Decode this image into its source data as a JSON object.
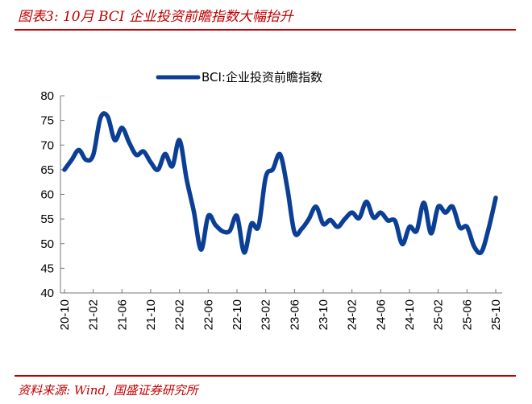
{
  "header": {
    "title": "图表3:  10月 BCI 企业投资前瞻指数大幅抬升"
  },
  "footer": {
    "source": "资料来源:  Wind, 国盛证券研究所"
  },
  "colors": {
    "line": "#0b3f95",
    "accent": "#c00000"
  },
  "chart_data": {
    "type": "line",
    "legend_position": "top",
    "grid": false,
    "ylim": [
      40,
      80
    ],
    "yticks": [
      40,
      45,
      50,
      55,
      60,
      65,
      70,
      75,
      80
    ],
    "xtick_labels": [
      "20-10",
      "21-02",
      "21-06",
      "21-10",
      "22-02",
      "22-06",
      "22-10",
      "23-02",
      "23-06",
      "23-10",
      "24-02",
      "24-06",
      "24-10",
      "25-02",
      "25-06",
      "25-10"
    ],
    "x": [
      "20-10",
      "20-11",
      "20-12",
      "21-01",
      "21-02",
      "21-03",
      "21-04",
      "21-05",
      "21-06",
      "21-07",
      "21-08",
      "21-09",
      "21-10",
      "21-11",
      "21-12",
      "22-01",
      "22-02",
      "22-03",
      "22-04",
      "22-05",
      "22-06",
      "22-07",
      "22-08",
      "22-09",
      "22-10",
      "22-11",
      "22-12",
      "23-01",
      "23-02",
      "23-03",
      "23-04",
      "23-05",
      "23-06",
      "23-07",
      "23-08",
      "23-09",
      "23-10",
      "23-11",
      "23-12",
      "24-01",
      "24-02",
      "24-03",
      "24-04",
      "24-05",
      "24-06",
      "24-07",
      "24-08",
      "24-09",
      "24-10",
      "24-11",
      "24-12",
      "25-01",
      "25-02",
      "25-03",
      "25-04",
      "25-05",
      "25-06",
      "25-07",
      "25-08",
      "25-09",
      "25-10"
    ],
    "series": [
      {
        "name": "BCI:企业投资前瞻指数",
        "values": [
          65,
          67,
          69,
          67,
          68,
          75.5,
          75.8,
          71,
          73.5,
          70.5,
          68,
          68.7,
          66.5,
          65,
          68.2,
          65.7,
          71,
          63,
          56.5,
          48.8,
          55.6,
          53.8,
          52.5,
          52.6,
          55.6,
          48.2,
          54,
          53.5,
          63.5,
          65.1,
          68.1,
          61.3,
          52.3,
          53,
          55,
          57.5,
          54,
          54.8,
          53.4,
          55,
          56.3,
          55.2,
          58.5,
          55.3,
          56.3,
          54.7,
          54.6,
          49.9,
          53.4,
          52.6,
          58.3,
          52.1,
          57.5,
          56.3,
          57.5,
          53.3,
          53.4,
          49.4,
          48.3,
          53,
          59.3
        ]
      }
    ]
  }
}
